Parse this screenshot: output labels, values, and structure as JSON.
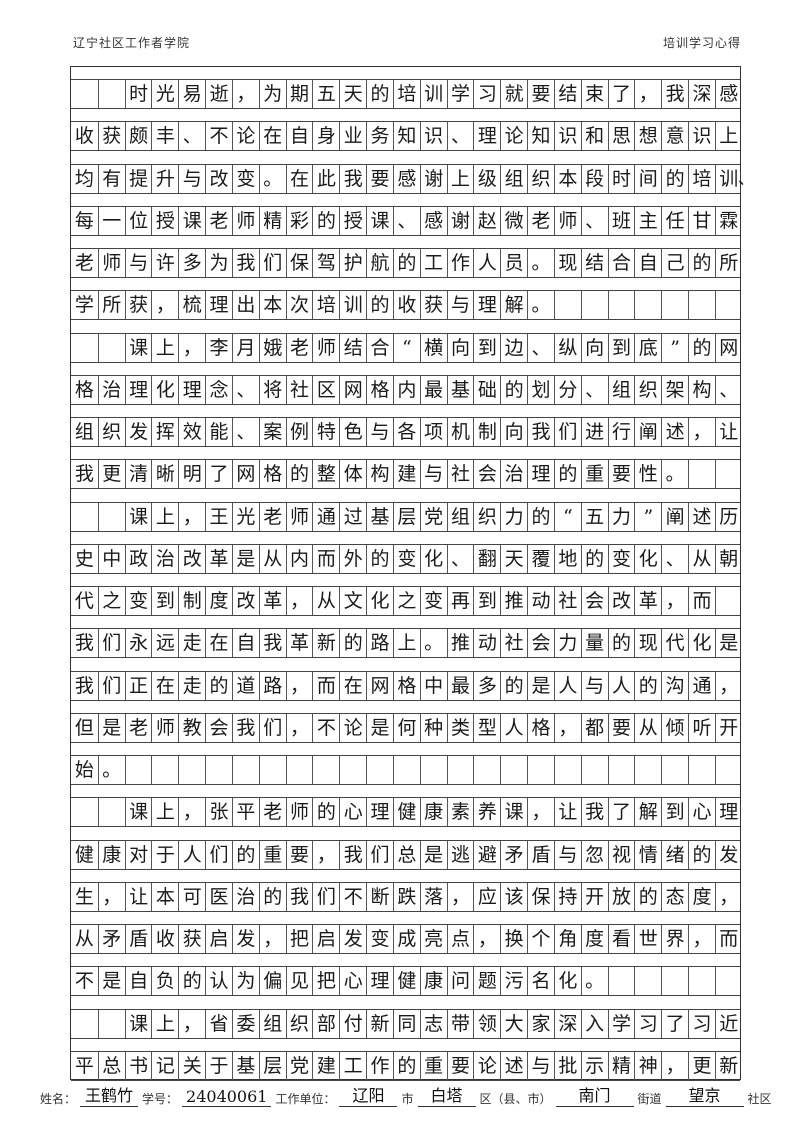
{
  "header": {
    "left": "辽宁社区工作者学院",
    "right": "培训学习心得"
  },
  "lines": [
    "　　时光易逝，为期五天的培训学习就要结束了，我深感",
    "收获颇丰、不论在自身业务知识、理论知识和思想意识上",
    "均有提升与改变。在此我要感谢上级组织本段时间的培训、",
    "每一位授课老师精彩的授课、感谢赵微老师、班主任甘霖",
    "老师与许多为我们保驾护航的工作人员。现结合自己的所",
    "学所获，梳理出本次培训的收获与理解。",
    "　　课上，李月娥老师结合“横向到边、纵向到底”的网",
    "格治理化理念、将社区网格内最基础的划分、组织架构、",
    "组织发挥效能、案例特色与各项机制向我们进行阐述，让",
    "我更清晰明了网格的整体构建与社会治理的重要性。",
    "　　课上，王光老师通过基层党组织力的“五力”阐述历",
    "史中政治改革是从内而外的变化、翻天覆地的变化、从朝",
    "代之变到制度改革，从文化之变再到推动社会改革，而",
    "我们永远走在自我革新的路上。推动社会力量的现代化是",
    "我们正在走的道路，而在网格中最多的是人与人的沟通，",
    "但是老师教会我们，不论是何种类型人格，都要从倾听开",
    "始。",
    "　　课上，张平老师的心理健康素养课，让我了解到心理",
    "健康对于人们的重要，我们总是逃避矛盾与忽视情绪的发",
    "生，让本可医治的我们不断跌落，应该保持开放的态度，",
    "从矛盾收获启发，把启发变成亮点，换个角度看世界，而",
    "不是自负的认为偏见把心理健康问题污名化。",
    "　　课上，省委组织部付新同志带领大家深入学习了习近",
    "平总书记关于基层党建工作的重要论述与批示精神，更新"
  ],
  "footer": {
    "name_label": "姓名：",
    "name": "王鹤竹",
    "id_label": "学号：",
    "id": "24040061",
    "unit_label": "工作单位：",
    "city": "辽阳",
    "city_label": "市",
    "district": "白塔",
    "district_label": "区（县、市）",
    "street": "南门",
    "street_label": "街道",
    "community": "望京",
    "community_label": "社区"
  }
}
